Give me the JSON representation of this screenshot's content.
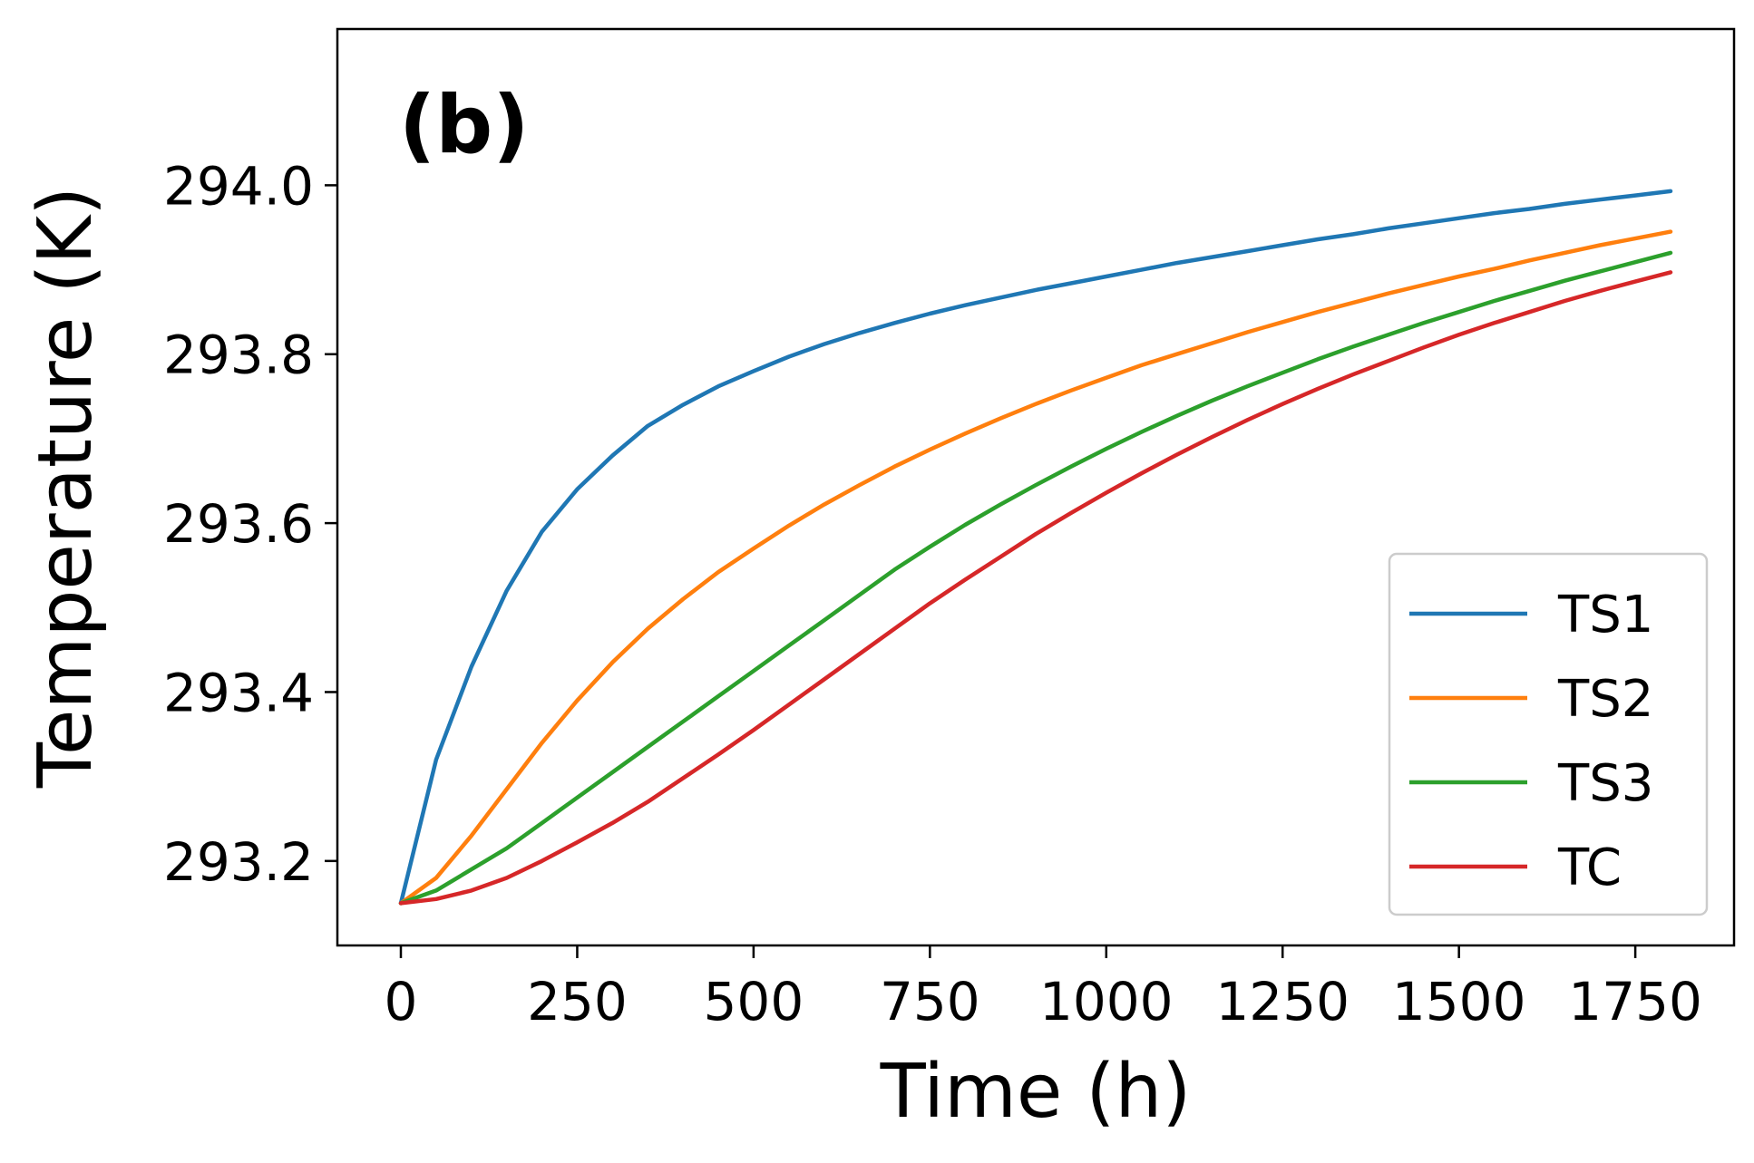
{
  "chart_data": {
    "type": "line",
    "title": "",
    "panel_label": "(b)",
    "xlabel": "Time (h)",
    "ylabel": "Temperature (K)",
    "xlim": [
      -90,
      1890
    ],
    "ylim": [
      293.1,
      294.185
    ],
    "xticks": [
      0,
      250,
      500,
      750,
      1000,
      1250,
      1500,
      1750
    ],
    "xtick_labels": [
      "0",
      "250",
      "500",
      "750",
      "1000",
      "1250",
      "1500",
      "1750"
    ],
    "yticks": [
      293.2,
      293.4,
      293.6,
      293.8,
      294.0
    ],
    "ytick_labels": [
      "293.2",
      "293.4",
      "293.6",
      "293.8",
      "294.0"
    ],
    "grid": false,
    "legend_position": "lower-right",
    "x": [
      0,
      50,
      100,
      150,
      200,
      250,
      300,
      350,
      400,
      450,
      500,
      550,
      600,
      650,
      700,
      750,
      800,
      850,
      900,
      950,
      1000,
      1050,
      1100,
      1150,
      1200,
      1250,
      1300,
      1350,
      1400,
      1450,
      1500,
      1550,
      1600,
      1650,
      1700,
      1750,
      1800
    ],
    "series": [
      {
        "name": "TS1",
        "color": "#1f77b4",
        "values": [
          293.15,
          293.32,
          293.43,
          293.52,
          293.59,
          293.64,
          293.68,
          293.715,
          293.74,
          293.762,
          293.78,
          293.797,
          293.812,
          293.825,
          293.837,
          293.848,
          293.858,
          293.867,
          293.876,
          293.884,
          293.892,
          293.9,
          293.908,
          293.915,
          293.922,
          293.929,
          293.936,
          293.942,
          293.949,
          293.955,
          293.961,
          293.967,
          293.972,
          293.978,
          293.983,
          293.988,
          293.993
        ]
      },
      {
        "name": "TS2",
        "color": "#ff7f0e",
        "values": [
          293.15,
          293.18,
          293.23,
          293.285,
          293.34,
          293.39,
          293.435,
          293.475,
          293.51,
          293.542,
          293.57,
          293.597,
          293.622,
          293.645,
          293.667,
          293.687,
          293.706,
          293.724,
          293.741,
          293.757,
          293.772,
          293.787,
          293.8,
          293.813,
          293.826,
          293.838,
          293.85,
          293.861,
          293.872,
          293.882,
          293.892,
          293.901,
          293.911,
          293.92,
          293.929,
          293.937,
          293.945
        ]
      },
      {
        "name": "TS3",
        "color": "#2ca02c",
        "values": [
          293.15,
          293.165,
          293.19,
          293.215,
          293.245,
          293.275,
          293.305,
          293.335,
          293.365,
          293.395,
          293.425,
          293.455,
          293.485,
          293.515,
          293.545,
          293.572,
          293.598,
          293.622,
          293.645,
          293.667,
          293.688,
          293.708,
          293.727,
          293.745,
          293.762,
          293.778,
          293.794,
          293.809,
          293.823,
          293.837,
          293.85,
          293.863,
          293.875,
          293.887,
          293.898,
          293.909,
          293.92
        ]
      },
      {
        "name": "TC",
        "color": "#d62728",
        "values": [
          293.15,
          293.155,
          293.165,
          293.18,
          293.2,
          293.222,
          293.245,
          293.27,
          293.298,
          293.326,
          293.355,
          293.385,
          293.415,
          293.445,
          293.475,
          293.505,
          293.533,
          293.56,
          293.587,
          293.612,
          293.636,
          293.659,
          293.681,
          293.702,
          293.722,
          293.741,
          293.759,
          293.776,
          293.792,
          293.808,
          293.823,
          293.837,
          293.85,
          293.863,
          293.875,
          293.886,
          293.897
        ]
      }
    ]
  }
}
